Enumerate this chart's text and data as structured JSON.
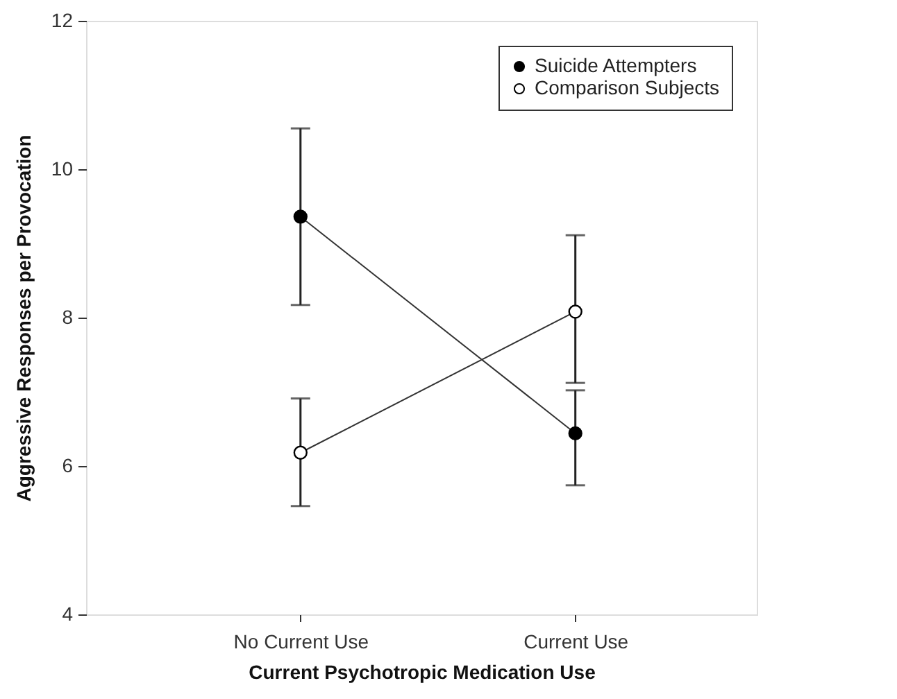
{
  "chart_data": {
    "type": "line",
    "xlabel": "Current Psychotropic Medication Use",
    "ylabel": "Aggressive Responses per Provocation",
    "categories": [
      "No Current Use",
      "Current Use"
    ],
    "series": [
      {
        "name": "Suicide Attempters",
        "color": "#000000",
        "values": [
          9.36,
          6.44
        ],
        "errors": [
          [
            8.17,
            10.55
          ],
          [
            5.74,
            7.02
          ]
        ]
      },
      {
        "name": "Comparison Subjects",
        "color": "#ffffff",
        "values": [
          6.18,
          8.08
        ],
        "errors": [
          [
            5.46,
            6.91
          ],
          [
            7.12,
            9.11
          ]
        ]
      }
    ],
    "ylim": [
      4,
      12
    ],
    "yticks": [
      4,
      6,
      8,
      10,
      12
    ],
    "grid": false,
    "legend": "top right",
    "marker": "circle",
    "line_style": "solid"
  }
}
